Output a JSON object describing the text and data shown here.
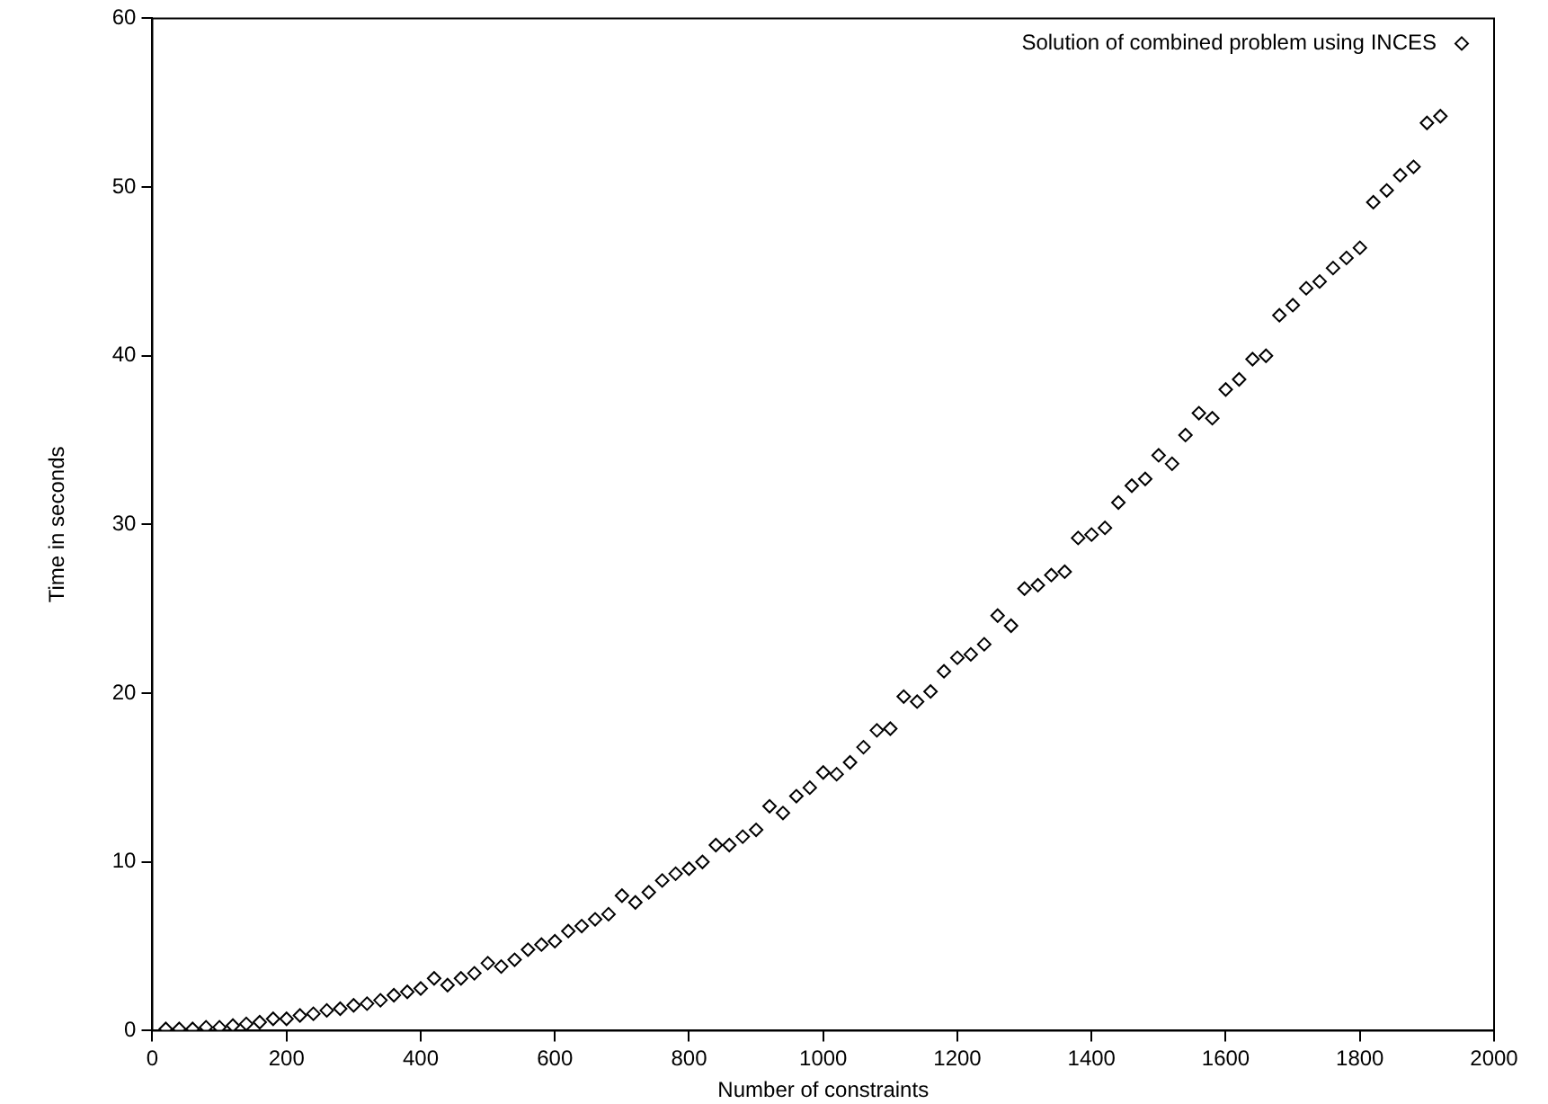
{
  "chart_data": {
    "type": "scatter",
    "xlabel": "Number of constraints",
    "ylabel": "Time in seconds",
    "xlim": [
      0,
      2000
    ],
    "ylim": [
      0,
      60
    ],
    "xticks": [
      0,
      200,
      400,
      600,
      800,
      1000,
      1200,
      1400,
      1600,
      1800,
      2000
    ],
    "yticks": [
      0,
      10,
      20,
      30,
      40,
      50,
      60
    ],
    "grid": false,
    "legend": "top right",
    "marker": "diamond",
    "x": [
      20,
      40,
      60,
      80,
      100,
      120,
      140,
      160,
      180,
      200,
      220,
      240,
      260,
      280,
      300,
      320,
      340,
      360,
      380,
      400,
      420,
      440,
      460,
      480,
      500,
      520,
      540,
      560,
      580,
      600,
      620,
      640,
      660,
      680,
      700,
      720,
      740,
      760,
      780,
      800,
      820,
      840,
      860,
      880,
      900,
      920,
      940,
      960,
      980,
      1000,
      1020,
      1040,
      1060,
      1080,
      1100,
      1120,
      1140,
      1160,
      1180,
      1200,
      1220,
      1240,
      1260,
      1280,
      1300,
      1320,
      1340,
      1360,
      1380,
      1400,
      1420,
      1440,
      1460,
      1480,
      1500,
      1520,
      1540,
      1560,
      1580,
      1600,
      1620,
      1640,
      1660,
      1680,
      1700,
      1720,
      1740,
      1760,
      1780,
      1800,
      1820,
      1840,
      1860,
      1880,
      1900,
      1920
    ],
    "series": [
      {
        "name": "Solution of combined problem using INCES",
        "color": "#000000",
        "values": [
          0.1,
          0.1,
          0.1,
          0.2,
          0.2,
          0.3,
          0.4,
          0.5,
          0.7,
          0.7,
          0.9,
          1.0,
          1.2,
          1.3,
          1.5,
          1.6,
          1.8,
          2.1,
          2.3,
          2.5,
          3.1,
          2.7,
          3.1,
          3.4,
          4.0,
          3.8,
          4.2,
          4.8,
          5.1,
          5.3,
          5.9,
          6.2,
          6.6,
          6.9,
          8.0,
          7.6,
          8.2,
          8.9,
          9.3,
          9.6,
          10.0,
          11.0,
          11.0,
          11.5,
          11.9,
          13.3,
          12.9,
          13.9,
          14.4,
          15.3,
          15.2,
          15.9,
          16.8,
          17.8,
          17.9,
          19.8,
          19.5,
          20.1,
          21.3,
          22.1,
          22.3,
          22.9,
          24.6,
          24.0,
          26.2,
          26.4,
          27.0,
          27.2,
          29.2,
          29.4,
          29.8,
          31.3,
          32.3,
          32.7,
          34.1,
          33.6,
          35.3,
          36.6,
          36.3,
          38.0,
          38.6,
          39.8,
          40.0,
          42.4,
          43.0,
          44.0,
          44.4,
          45.2,
          45.8,
          46.4,
          49.1,
          49.8,
          50.7,
          51.2,
          53.8,
          54.2
        ]
      }
    ]
  }
}
